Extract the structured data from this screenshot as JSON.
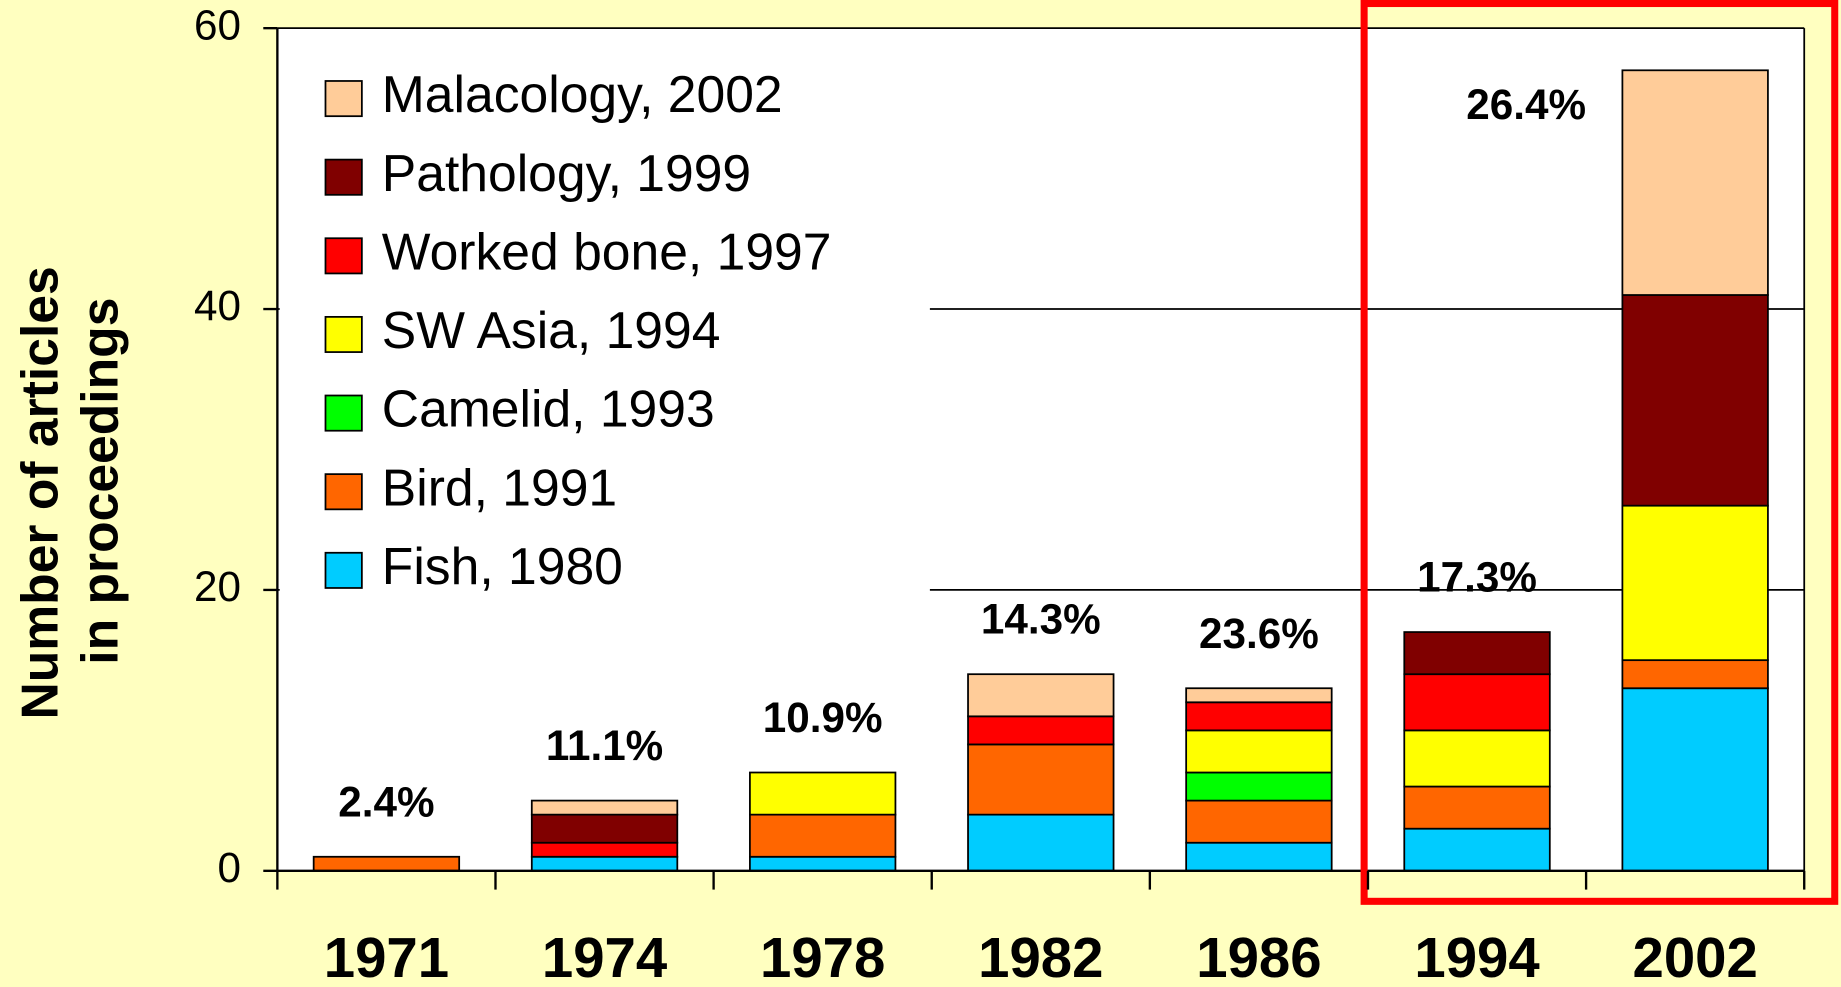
{
  "chart_data": {
    "type": "stacked_bar",
    "y_label": [
      "Number of articles",
      "in proceedings"
    ],
    "categories": [
      "1971",
      "1974",
      "1978",
      "1982",
      "1986",
      "1994",
      "2002"
    ],
    "annotations": [
      "2.4%",
      "11.1%",
      "10.9%",
      "14.3%",
      "23.6%",
      "17.3%",
      "26.4%"
    ],
    "series": [
      {
        "name": "Fish, 1980",
        "color": "#00CCFF",
        "values": [
          0,
          1,
          1,
          4,
          2,
          3,
          13
        ]
      },
      {
        "name": "Bird, 1991",
        "color": "#FF6600",
        "values": [
          1,
          0,
          3,
          5,
          3,
          3,
          2
        ]
      },
      {
        "name": "Camelid, 1993",
        "color": "#00FF00",
        "values": [
          0,
          0,
          0,
          0,
          2,
          0,
          0
        ]
      },
      {
        "name": "SW Asia, 1994",
        "color": "#FFFF00",
        "values": [
          0,
          0,
          3,
          0,
          3,
          4,
          11
        ]
      },
      {
        "name": "Worked bone, 1997",
        "color": "#FF0000",
        "values": [
          0,
          1,
          0,
          2,
          2,
          4,
          0
        ]
      },
      {
        "name": "Pathology, 1999",
        "color": "#800000",
        "values": [
          0,
          2,
          0,
          0,
          0,
          3,
          15
        ]
      },
      {
        "name": "Malacology, 2002",
        "color": "#FFCC99",
        "values": [
          0,
          1,
          0,
          3,
          1,
          0,
          16
        ]
      }
    ],
    "ylim": [
      0,
      60
    ],
    "yticks": [
      0,
      20,
      40,
      60
    ],
    "grid": true
  }
}
